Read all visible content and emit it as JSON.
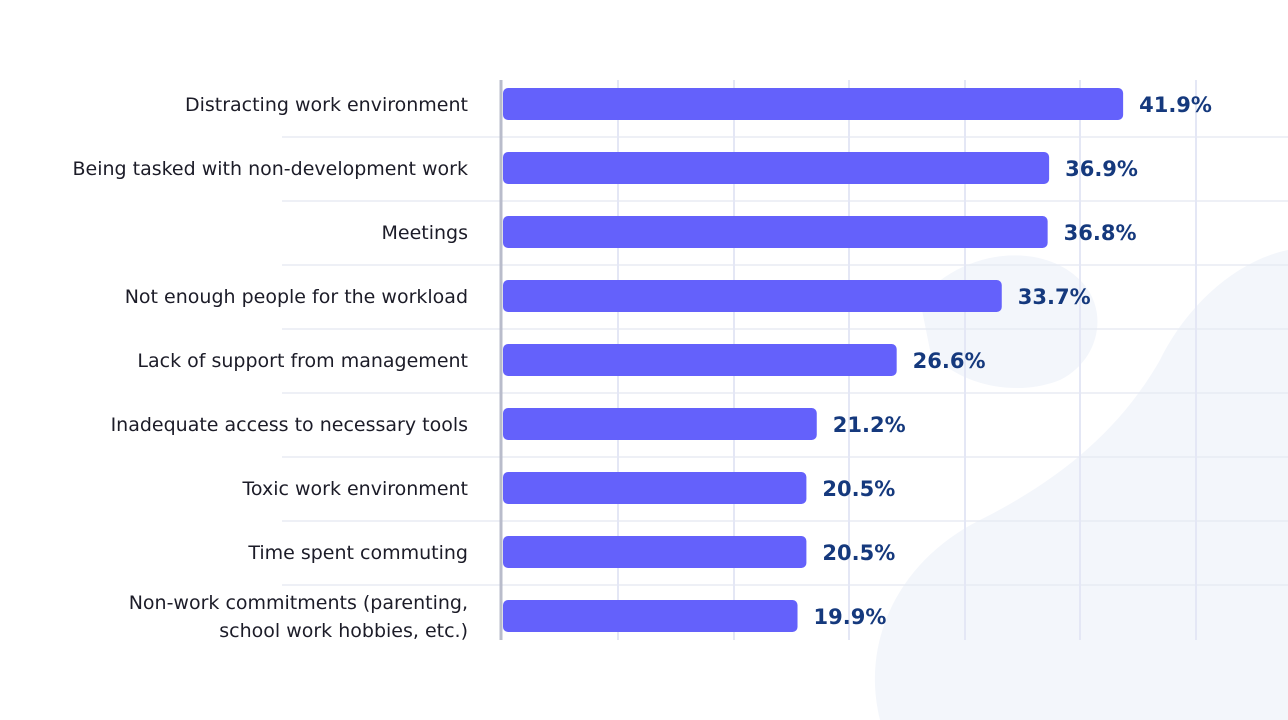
{
  "chart_data": {
    "type": "bar",
    "orientation": "horizontal",
    "categories": [
      "Distracting work environment",
      "Being tasked with non-development work",
      "Meetings",
      "Not enough people for the workload",
      "Lack of support from management",
      "Inadequate access to necessary tools",
      "Toxic work environment",
      "Time spent commuting",
      "Non-work commitments (parenting,\nschool work hobbies, etc.)"
    ],
    "values": [
      41.9,
      36.9,
      36.8,
      33.7,
      26.6,
      21.2,
      20.5,
      20.5,
      19.9
    ],
    "value_labels": [
      "41.9%",
      "36.9%",
      "36.8%",
      "33.7%",
      "26.6%",
      "21.2%",
      "20.5%",
      "20.5%",
      "19.9%"
    ],
    "title": "",
    "xlabel": "",
    "ylabel": "",
    "xlim": [
      0,
      60
    ],
    "grid": true,
    "legend": "none",
    "colors": {
      "bar": "#6461fb",
      "value_label": "#15397d",
      "category_label": "#1c1c28",
      "grid": "#e4e7f5",
      "axis": "#b9bccb",
      "background_shape": "#f3f6fb"
    }
  }
}
